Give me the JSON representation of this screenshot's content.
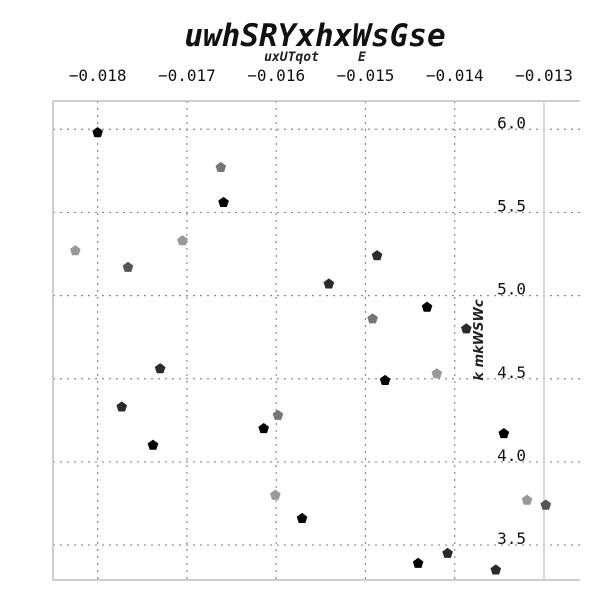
{
  "chart_data": {
    "type": "scatter",
    "title": "uwhSRYxhxWsGse",
    "xlabel": "uxUTqot     E",
    "ylabel": "k mkWSWc",
    "xlim": [
      -0.0185,
      -0.013
    ],
    "ylim": [
      3.29,
      6.17
    ],
    "x_ticks": [
      -0.018,
      -0.017,
      -0.016,
      -0.015,
      -0.014,
      -0.013
    ],
    "x_tick_labels": [
      "−0.018",
      "−0.017",
      "−0.016",
      "−0.015",
      "−0.014",
      "−0.013"
    ],
    "y_ticks": [
      3.5,
      4.0,
      4.5,
      5.0,
      5.5,
      6.0
    ],
    "y_tick_labels": [
      "3.5",
      "4.0",
      "4.5",
      "5.0",
      "5.5",
      "6.0"
    ],
    "grid": true,
    "x_axis_position": "top",
    "y_axis_position": "right",
    "colors": [
      "#000000",
      "#2b2b2b",
      "#555555",
      "#777777",
      "#999999"
    ],
    "points": [
      {
        "x": -0.018,
        "y": 5.98,
        "c": 0
      },
      {
        "x": -0.01825,
        "y": 5.27,
        "c": 4
      },
      {
        "x": -0.01766,
        "y": 5.17,
        "c": 2
      },
      {
        "x": -0.01773,
        "y": 4.33,
        "c": 1
      },
      {
        "x": -0.0173,
        "y": 4.56,
        "c": 1
      },
      {
        "x": -0.01738,
        "y": 4.1,
        "c": 0
      },
      {
        "x": -0.01705,
        "y": 5.33,
        "c": 4
      },
      {
        "x": -0.01662,
        "y": 5.77,
        "c": 3
      },
      {
        "x": -0.01659,
        "y": 5.56,
        "c": 0
      },
      {
        "x": -0.01614,
        "y": 4.2,
        "c": 0
      },
      {
        "x": -0.01598,
        "y": 4.28,
        "c": 3
      },
      {
        "x": -0.01601,
        "y": 3.8,
        "c": 4
      },
      {
        "x": -0.01571,
        "y": 3.66,
        "c": 0
      },
      {
        "x": -0.01541,
        "y": 5.07,
        "c": 1
      },
      {
        "x": -0.01487,
        "y": 5.24,
        "c": 1
      },
      {
        "x": -0.01492,
        "y": 4.86,
        "c": 3
      },
      {
        "x": -0.01478,
        "y": 4.49,
        "c": 0
      },
      {
        "x": -0.01441,
        "y": 3.39,
        "c": 0
      },
      {
        "x": -0.01431,
        "y": 4.93,
        "c": 0
      },
      {
        "x": -0.0142,
        "y": 4.53,
        "c": 4
      },
      {
        "x": -0.01408,
        "y": 3.45,
        "c": 1
      },
      {
        "x": -0.01387,
        "y": 4.8,
        "c": 1
      },
      {
        "x": -0.01354,
        "y": 3.35,
        "c": 1
      },
      {
        "x": -0.01345,
        "y": 4.17,
        "c": 0
      },
      {
        "x": -0.01319,
        "y": 3.77,
        "c": 4
      },
      {
        "x": -0.01298,
        "y": 3.74,
        "c": 2
      }
    ]
  }
}
